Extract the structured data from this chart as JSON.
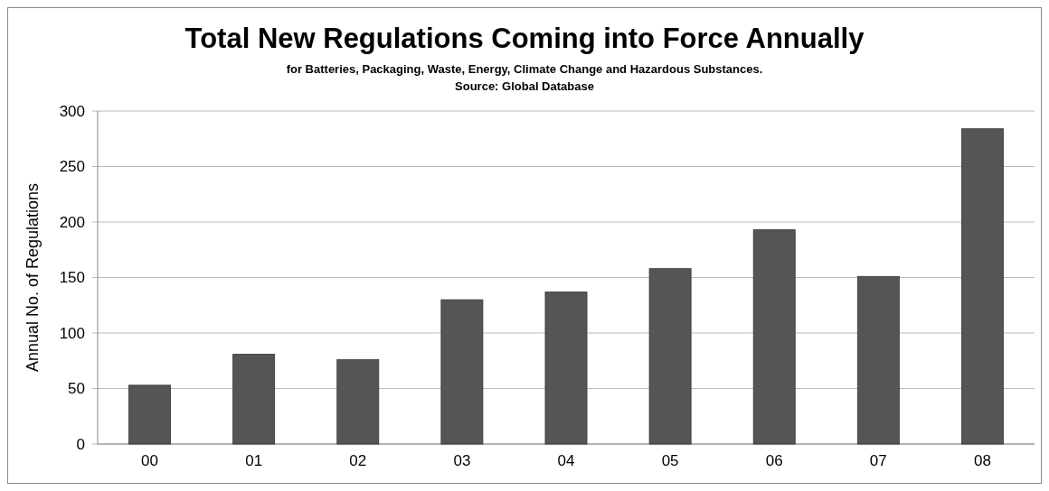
{
  "chart_data": {
    "type": "bar",
    "title": "Total New Regulations Coming into Force Annually",
    "subtitle": "for Batteries, Packaging, Waste, Energy, Climate Change and Hazardous Substances.",
    "annotations": [
      "Source: Global Database"
    ],
    "ylabel": "Annual No. of Regulations",
    "categories": [
      "00",
      "01",
      "02",
      "03",
      "04",
      "05",
      "06",
      "07",
      "08"
    ],
    "values": [
      53,
      81,
      76,
      130,
      137,
      158,
      193,
      151,
      284
    ],
    "color": "#555555",
    "ylim": [
      0,
      300
    ],
    "yticks": [
      0,
      50,
      100,
      150,
      200,
      250,
      300
    ],
    "grid": "y"
  }
}
